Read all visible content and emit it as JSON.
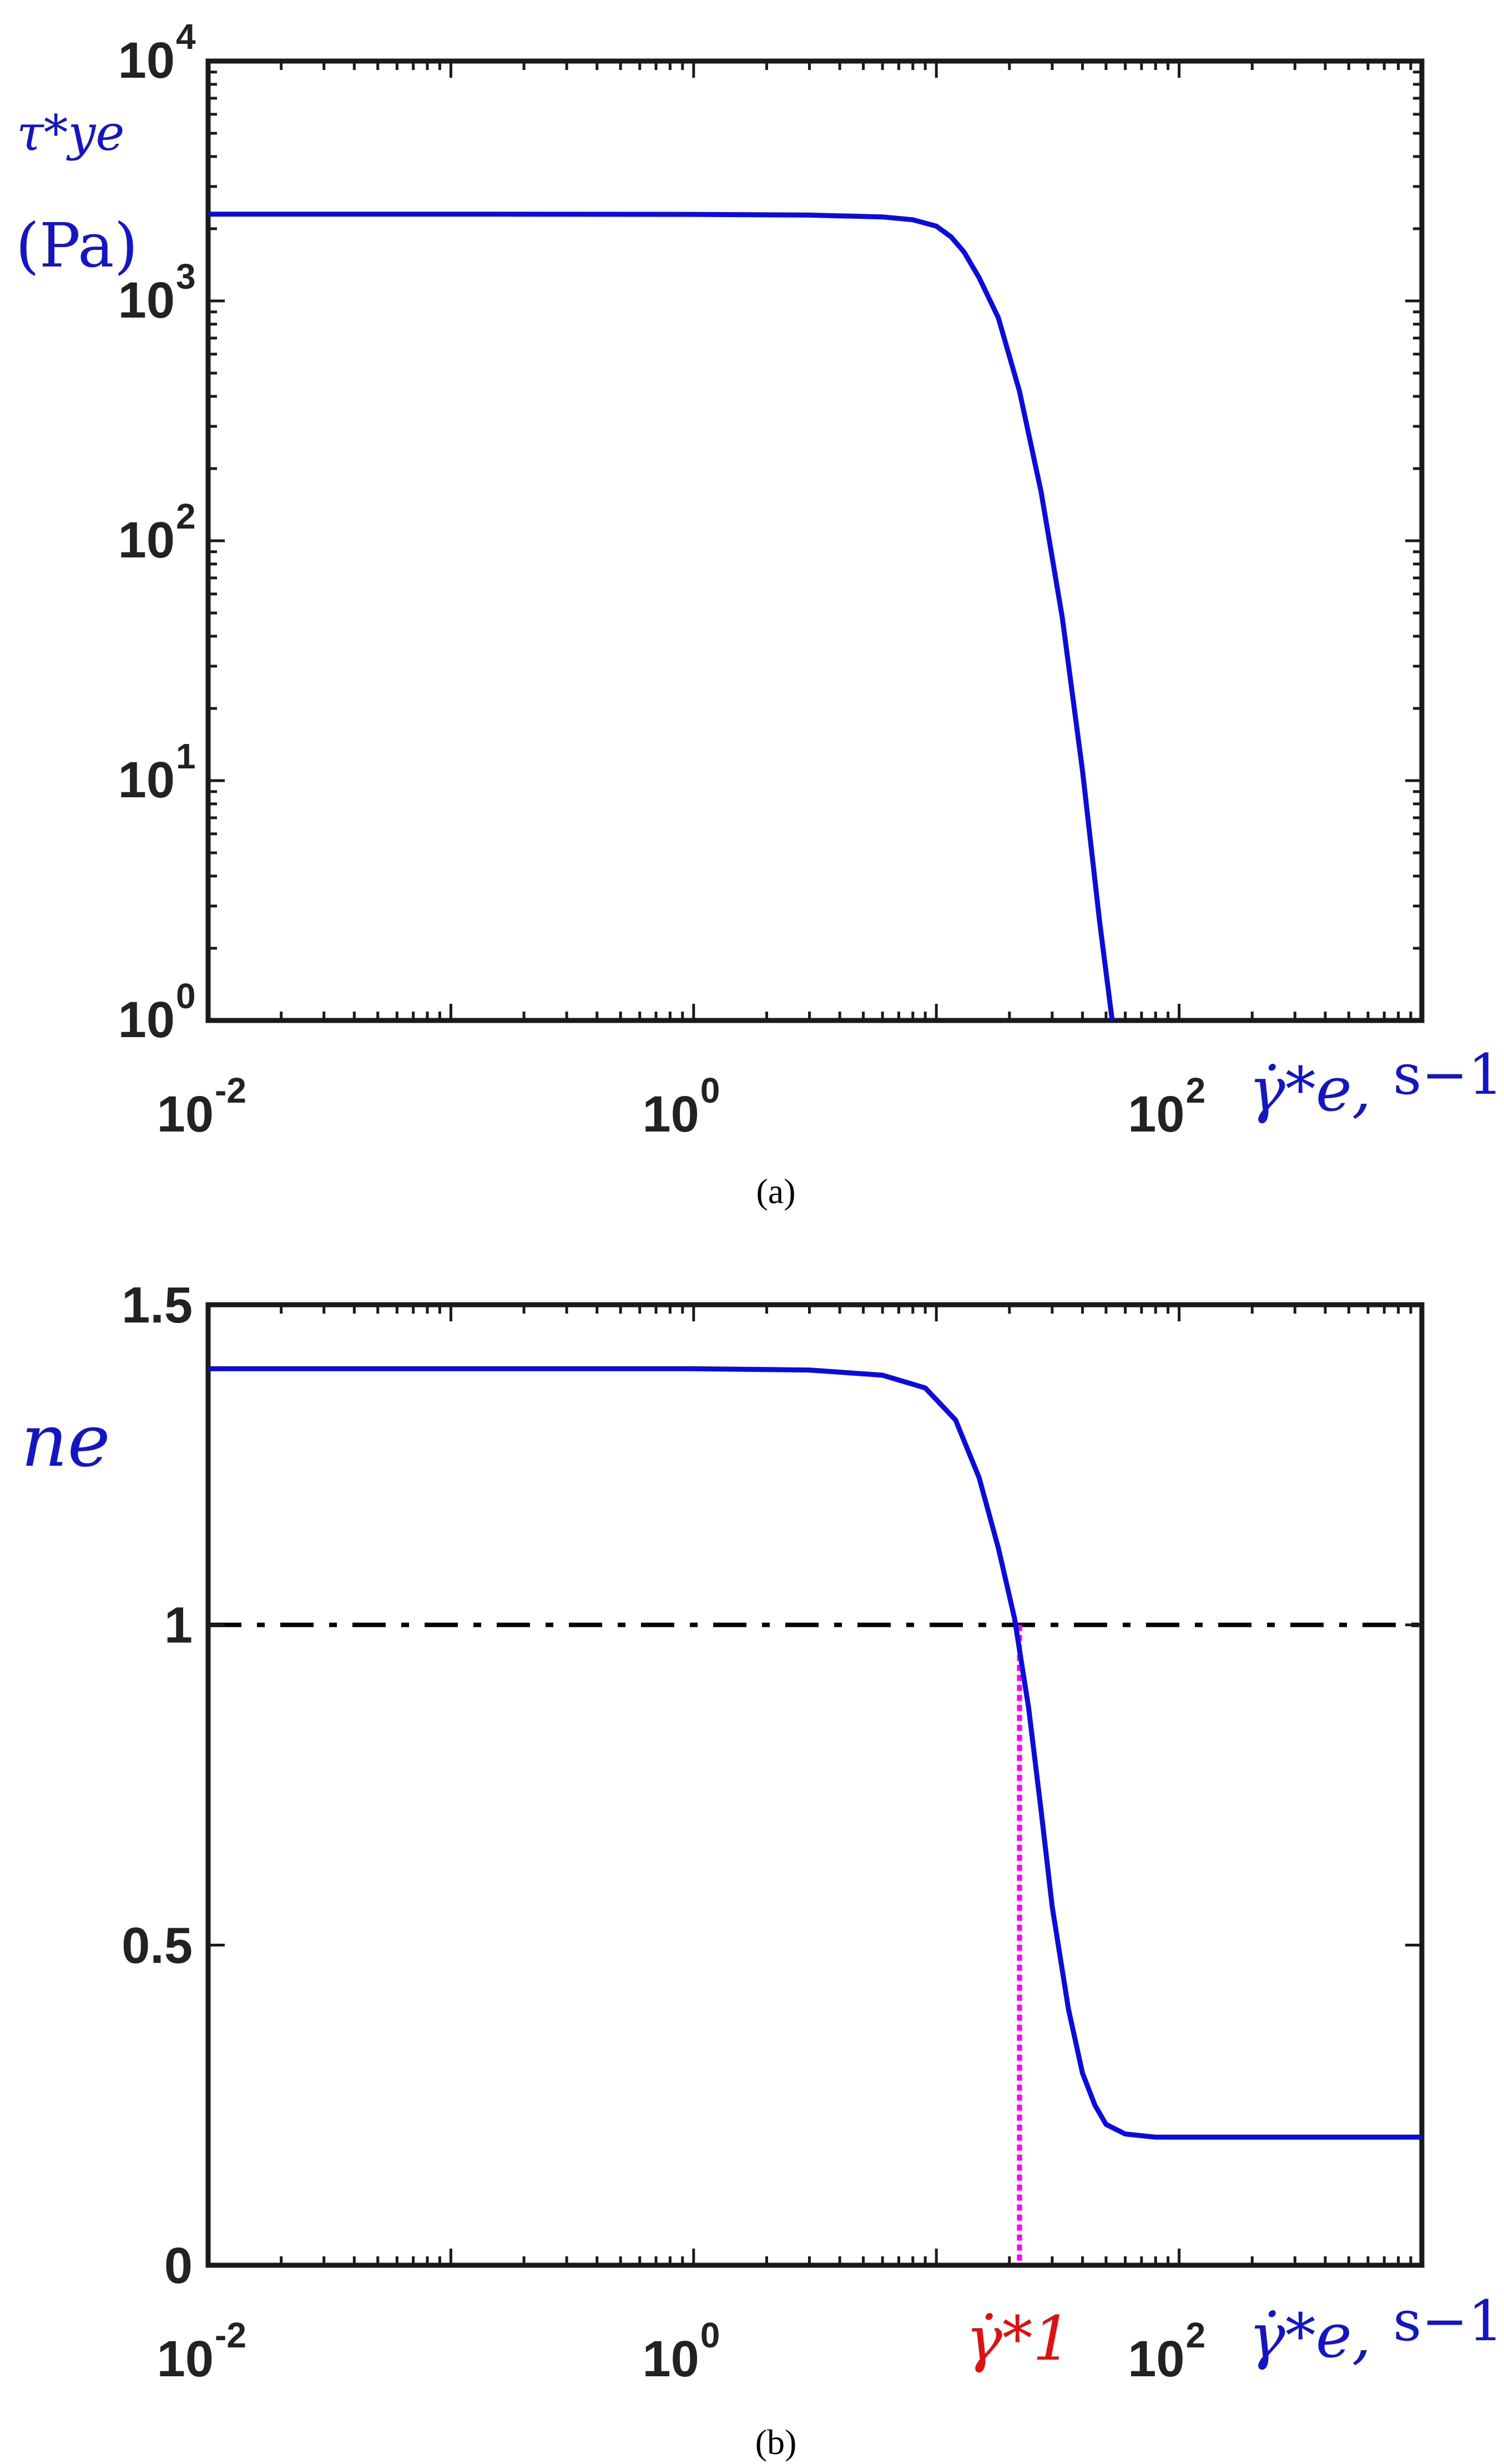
{
  "colors": {
    "curve": "#0b0be0",
    "axis_label": "#1515c8",
    "frame": "#1a1a1a",
    "threshold_line": "#000000",
    "marker_line": "#ff00ff",
    "marker_label": "#e01010"
  },
  "chart_data": [
    {
      "type": "line",
      "caption": "(a)",
      "ylabel_var": "τ*ye",
      "ylabel_unit": "(Pa)",
      "xlabel_var": "γ̇*e,",
      "xlabel_unit": "s−1",
      "xscale": "log",
      "yscale": "log",
      "xlim": [
        0.01,
        1000
      ],
      "ylim": [
        1,
        10000
      ],
      "grid": false,
      "legend": "none",
      "xticks": [
        0.01,
        1,
        100
      ],
      "xtick_base": [
        "10",
        "10",
        "10"
      ],
      "xtick_exp": [
        "-2",
        "0",
        "2"
      ],
      "yticks": [
        1,
        10,
        100,
        1000,
        10000
      ],
      "ytick_base": [
        "10",
        "10",
        "10",
        "10",
        "10"
      ],
      "ytick_exp": [
        "0",
        "1",
        "2",
        "3",
        "4"
      ],
      "series": [
        {
          "x": [
            0.01,
            0.1,
            1,
            3,
            6,
            8,
            10,
            11.5,
            13,
            15,
            18,
            22,
            27,
            33,
            40,
            47,
            53
          ],
          "y": [
            2300,
            2300,
            2295,
            2280,
            2240,
            2180,
            2050,
            1850,
            1600,
            1250,
            850,
            420,
            160,
            48,
            11,
            2.6,
            1
          ]
        }
      ]
    },
    {
      "type": "line",
      "caption": "(b)",
      "ylabel_var": "ne",
      "xlabel_var": "γ̇*e,",
      "xlabel_unit": "s−1",
      "marker_label": "γ̇*1",
      "xscale": "log",
      "yscale": "linear",
      "xlim": [
        0.01,
        1000
      ],
      "ylim": [
        0,
        1.5
      ],
      "grid": false,
      "legend": "none",
      "xticks": [
        0.01,
        1,
        100
      ],
      "xtick_base": [
        "10",
        "10",
        "10"
      ],
      "xtick_exp": [
        "-2",
        "0",
        "2"
      ],
      "yticks": [
        0,
        0.5,
        1,
        1.5
      ],
      "ytick_labels": [
        "0",
        "0.5",
        "1",
        "1.5"
      ],
      "threshold_y": 1,
      "marker_x": 22,
      "series": [
        {
          "x": [
            0.01,
            0.1,
            1,
            3,
            6,
            9,
            12,
            15,
            18,
            21,
            24,
            27,
            30,
            35,
            40,
            45,
            50,
            60,
            80,
            150,
            1000
          ],
          "y": [
            1.4,
            1.4,
            1.4,
            1.398,
            1.39,
            1.37,
            1.32,
            1.23,
            1.12,
            1.01,
            0.87,
            0.71,
            0.56,
            0.4,
            0.3,
            0.25,
            0.22,
            0.205,
            0.2,
            0.2,
            0.2
          ]
        }
      ]
    }
  ]
}
